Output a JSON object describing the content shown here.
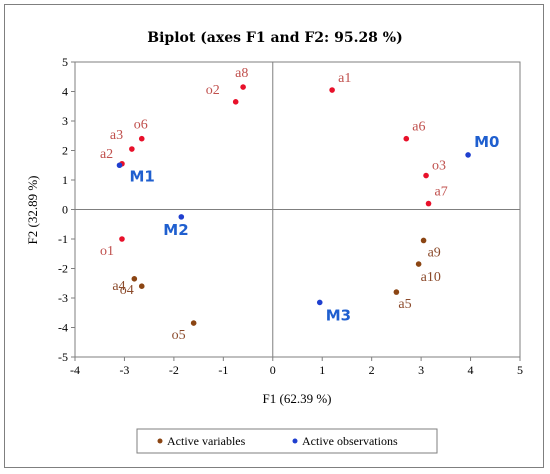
{
  "chart_data": {
    "type": "scatter",
    "title": "Biplot (axes F1 and F2: 95.28 %)",
    "xlabel": "F1 (62.39 %)",
    "ylabel": "F2 (32.89 %)",
    "xlim": [
      -4,
      5
    ],
    "ylim": [
      -5,
      5
    ],
    "xticks": [
      -4,
      -3,
      -2,
      -1,
      0,
      1,
      2,
      3,
      4,
      5
    ],
    "yticks": [
      -5,
      -4,
      -3,
      -2,
      -1,
      0,
      1,
      2,
      3,
      4,
      5
    ],
    "grid": false,
    "legend_position": "bottom",
    "colors": {
      "red_points": "#e8102a",
      "brown_points": "#8b4513",
      "observations": "#1f3fcf",
      "red_label": "#c0504d",
      "brown_label": "#8b4a2b",
      "obs_label": "#1f5fcf"
    },
    "legend": [
      {
        "label": "Active variables",
        "color": "#8b4513"
      },
      {
        "label": "Active observations",
        "color": "#1f3fcf"
      }
    ],
    "series": [
      {
        "name": "Active variables",
        "points": [
          {
            "label": "a8",
            "x": -0.6,
            "y": 4.15,
            "color": "red"
          },
          {
            "label": "o2",
            "x": -0.75,
            "y": 3.65,
            "color": "red"
          },
          {
            "label": "a1",
            "x": 1.2,
            "y": 4.05,
            "color": "red"
          },
          {
            "label": "o6",
            "x": -2.65,
            "y": 2.4,
            "color": "red"
          },
          {
            "label": "a3",
            "x": -2.85,
            "y": 2.05,
            "color": "red"
          },
          {
            "label": "a2",
            "x": -3.05,
            "y": 1.55,
            "color": "red"
          },
          {
            "label": "a6",
            "x": 2.7,
            "y": 2.4,
            "color": "red"
          },
          {
            "label": "o3",
            "x": 3.1,
            "y": 1.15,
            "color": "red"
          },
          {
            "label": "a7",
            "x": 3.15,
            "y": 0.2,
            "color": "red"
          },
          {
            "label": "o1",
            "x": -3.05,
            "y": -1.0,
            "color": "red"
          },
          {
            "label": "a9",
            "x": 3.05,
            "y": -1.05,
            "color": "brown"
          },
          {
            "label": "a10",
            "x": 2.95,
            "y": -1.85,
            "color": "brown"
          },
          {
            "label": "a5",
            "x": 2.5,
            "y": -2.8,
            "color": "brown"
          },
          {
            "label": "a4",
            "x": -2.8,
            "y": -2.35,
            "color": "brown"
          },
          {
            "label": "o4",
            "x": -2.65,
            "y": -2.6,
            "color": "brown"
          },
          {
            "label": "o5",
            "x": -1.6,
            "y": -3.85,
            "color": "brown"
          }
        ]
      },
      {
        "name": "Active observations",
        "points": [
          {
            "label": "M0",
            "x": 3.95,
            "y": 1.85
          },
          {
            "label": "M1",
            "x": -3.1,
            "y": 1.5
          },
          {
            "label": "M2",
            "x": -1.85,
            "y": -0.25
          },
          {
            "label": "M3",
            "x": 0.95,
            "y": -3.15
          }
        ]
      }
    ]
  }
}
